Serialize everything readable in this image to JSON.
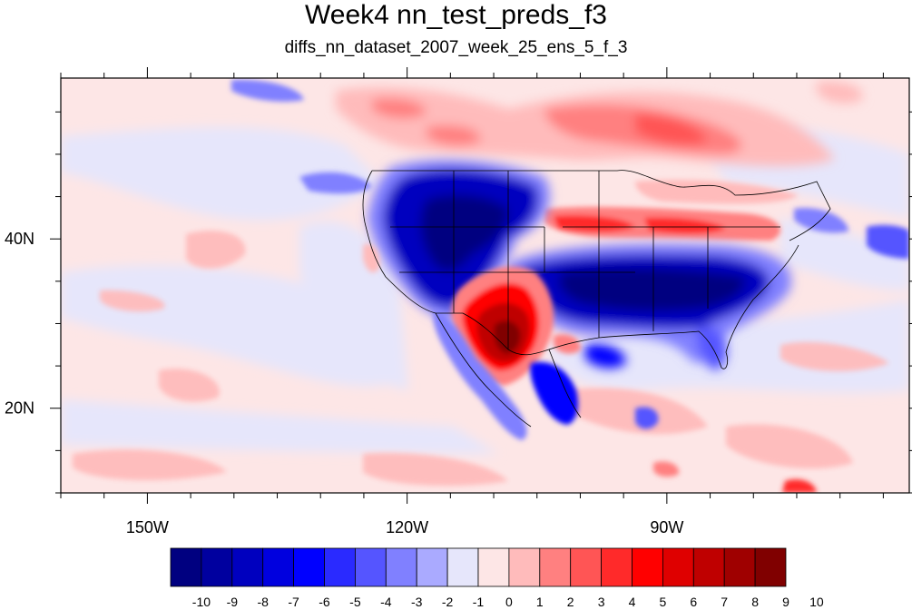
{
  "title": "Week4 nn_test_preds_f3",
  "subtitle": "diffs_nn_dataset_2007_week_25_ens_5_f_3",
  "map": {
    "lon_range": [
      -160,
      -62
    ],
    "lat_range": [
      10,
      59
    ],
    "lon_ticks": [
      {
        "value": -150,
        "label": "150W"
      },
      {
        "value": -120,
        "label": "120W"
      },
      {
        "value": -90,
        "label": "90W"
      }
    ],
    "lat_ticks": [
      {
        "value": 20,
        "label": "20N"
      },
      {
        "value": 40,
        "label": "40N"
      }
    ],
    "background_color": "#fde6e6"
  },
  "colorbar": {
    "labels": [
      "-10",
      "-9",
      "-8",
      "-7",
      "-6",
      "-5",
      "-4",
      "-3",
      "-2",
      "-1",
      "0",
      "1",
      "2",
      "3",
      "4",
      "5",
      "6",
      "7",
      "8",
      "9",
      "10"
    ],
    "colors": [
      "#000080",
      "#00009f",
      "#0000bf",
      "#0000df",
      "#0000ff",
      "#2a2aff",
      "#5555ff",
      "#8080ff",
      "#aaaaff",
      "#e6e6fb",
      "#fde6e6",
      "#ffbbbb",
      "#ff8080",
      "#ff5555",
      "#ff2a2a",
      "#ff0000",
      "#df0000",
      "#bf0000",
      "#9f0000",
      "#800000"
    ]
  }
}
